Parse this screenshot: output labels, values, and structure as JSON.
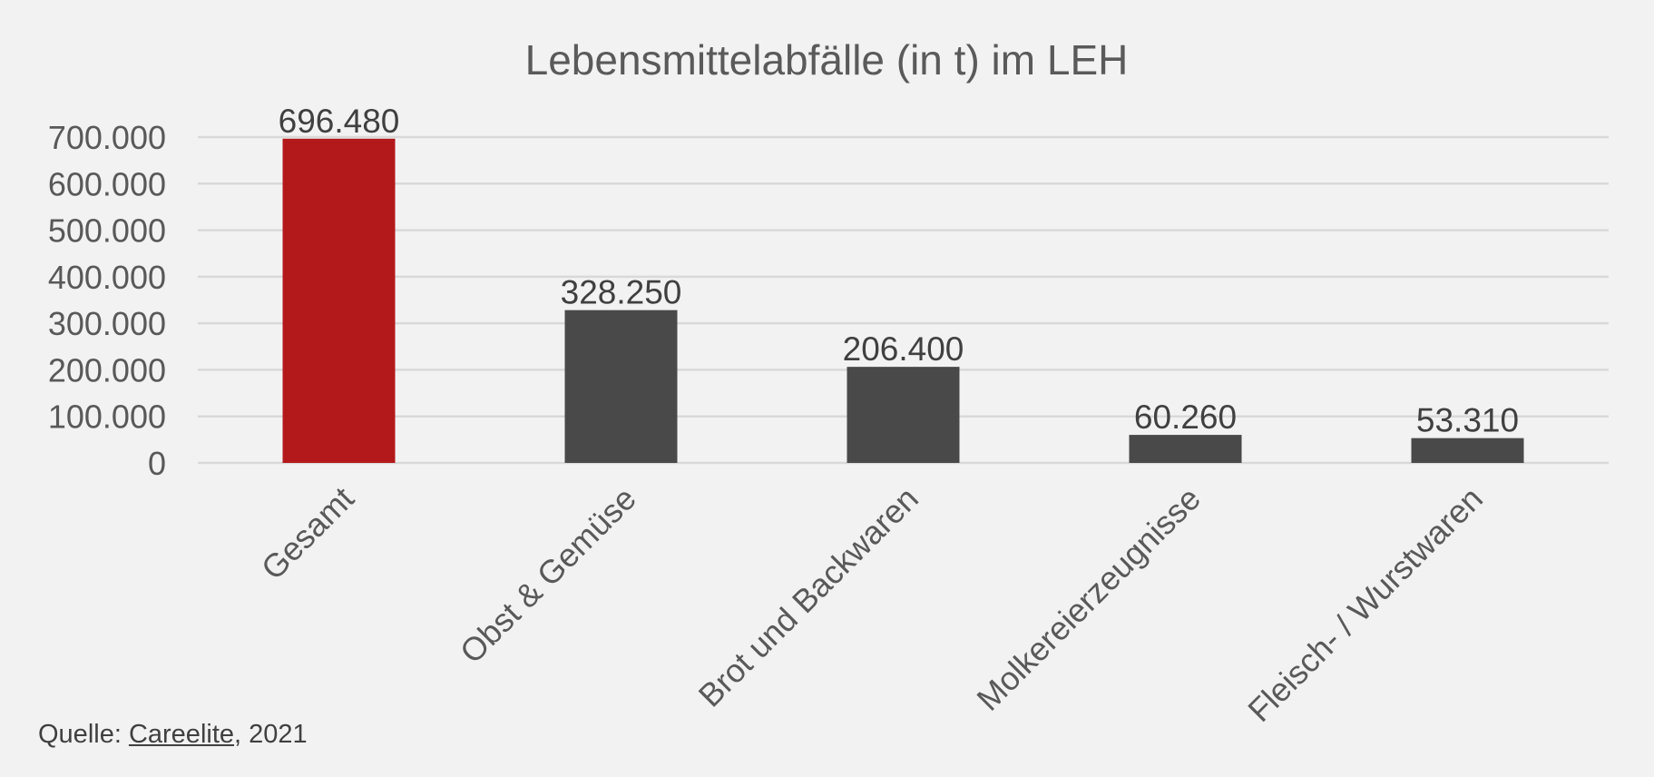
{
  "chart_data": {
    "type": "bar",
    "title": "Lebensmittelabfälle (in t) im LEH",
    "xlabel": "",
    "ylabel": "",
    "categories": [
      "Gesamt",
      "Obst & Gemüse",
      "Brot und Backwaren",
      "Molkereierzeugnisse",
      "Fleisch- / Wurstwaren"
    ],
    "values": [
      696480,
      328250,
      206400,
      60260,
      53310
    ],
    "data_labels": [
      "696.480",
      "328.250",
      "206.400",
      "60.260",
      "53.310"
    ],
    "ylim": [
      0,
      700000
    ],
    "y_ticks": [
      0,
      100000,
      200000,
      300000,
      400000,
      500000,
      600000,
      700000
    ],
    "y_tick_labels": [
      "0",
      "100.000",
      "200.000",
      "300.000",
      "400.000",
      "500.000",
      "600.000",
      "700.000"
    ],
    "bar_colors": [
      "#b3191b",
      "#494949",
      "#494949",
      "#494949",
      "#494949"
    ],
    "grid": true,
    "legend": "none"
  },
  "source": {
    "prefix": "Quelle: ",
    "link_text": "Careelite",
    "suffix": ", 2021"
  }
}
